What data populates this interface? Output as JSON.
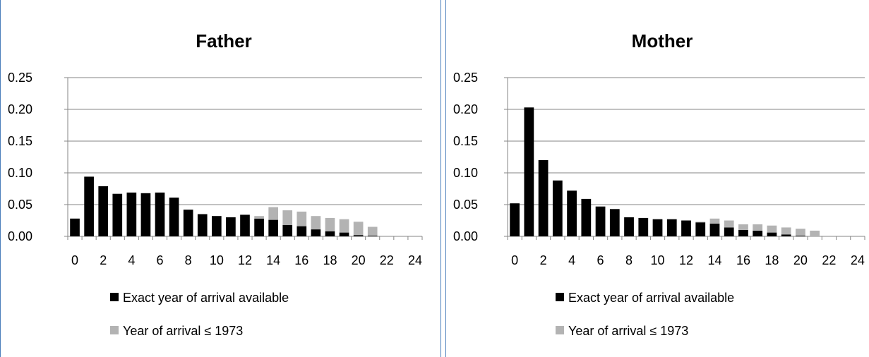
{
  "chart_data": [
    {
      "type": "bar",
      "stacked": true,
      "title": "Father",
      "xlabel": "",
      "ylabel": "",
      "ylim": [
        0,
        0.25
      ],
      "yticks": [
        "0.00",
        "0.05",
        "0.10",
        "0.15",
        "0.20",
        "0.25"
      ],
      "xticks": [
        "0",
        "2",
        "4",
        "6",
        "8",
        "10",
        "12",
        "14",
        "16",
        "18",
        "20",
        "22",
        "24"
      ],
      "categories": [
        0,
        1,
        2,
        3,
        4,
        5,
        6,
        7,
        8,
        9,
        10,
        11,
        12,
        13,
        14,
        15,
        16,
        17,
        18,
        19,
        20,
        21,
        22,
        23,
        24
      ],
      "grid": true,
      "legend_position": "bottom",
      "series": [
        {
          "name": "Exact year of arrival available",
          "color": "#000000",
          "values": [
            0.028,
            0.094,
            0.079,
            0.067,
            0.069,
            0.068,
            0.069,
            0.061,
            0.042,
            0.035,
            0.032,
            0.03,
            0.034,
            0.028,
            0.026,
            0.018,
            0.016,
            0.011,
            0.008,
            0.006,
            0.002,
            0.001,
            0,
            0,
            0
          ]
        },
        {
          "name": "Year of arrival ≤ 1973",
          "color": "#b3b3b3",
          "values": [
            0,
            0,
            0,
            0,
            0,
            0,
            0,
            0,
            0,
            0,
            0,
            0,
            0,
            0.004,
            0.02,
            0.023,
            0.023,
            0.021,
            0.021,
            0.021,
            0.021,
            0.014,
            0,
            0,
            0
          ]
        }
      ]
    },
    {
      "type": "bar",
      "stacked": true,
      "title": "Mother",
      "xlabel": "",
      "ylabel": "",
      "ylim": [
        0,
        0.25
      ],
      "yticks": [
        "0.00",
        "0.05",
        "0.10",
        "0.15",
        "0.20",
        "0.25"
      ],
      "xticks": [
        "0",
        "2",
        "4",
        "6",
        "8",
        "10",
        "12",
        "14",
        "16",
        "18",
        "20",
        "22",
        "24"
      ],
      "categories": [
        0,
        1,
        2,
        3,
        4,
        5,
        6,
        7,
        8,
        9,
        10,
        11,
        12,
        13,
        14,
        15,
        16,
        17,
        18,
        19,
        20,
        21,
        22,
        23,
        24
      ],
      "grid": true,
      "legend_position": "bottom",
      "series": [
        {
          "name": "Exact year of arrival available",
          "color": "#000000",
          "values": [
            0.052,
            0.203,
            0.12,
            0.088,
            0.072,
            0.059,
            0.047,
            0.043,
            0.03,
            0.029,
            0.027,
            0.027,
            0.025,
            0.022,
            0.02,
            0.014,
            0.01,
            0.009,
            0.006,
            0.003,
            0.001,
            0,
            0,
            0,
            0
          ]
        },
        {
          "name": "Year of arrival ≤ 1973",
          "color": "#b3b3b3",
          "values": [
            0,
            0,
            0,
            0,
            0,
            0,
            0,
            0,
            0,
            0,
            0,
            0,
            0,
            0.001,
            0.008,
            0.011,
            0.009,
            0.01,
            0.011,
            0.011,
            0.011,
            0.009,
            0,
            0,
            0
          ]
        }
      ]
    }
  ]
}
